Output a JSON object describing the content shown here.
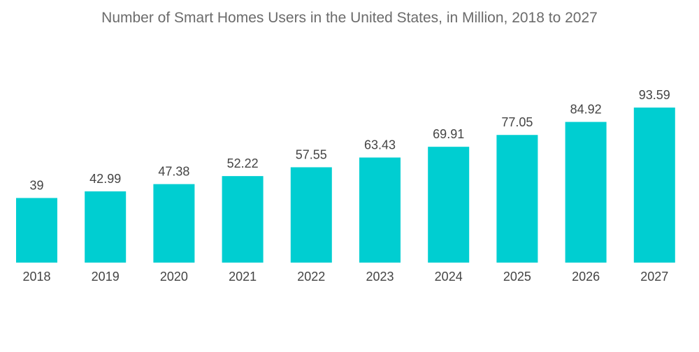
{
  "chart_data": {
    "type": "bar",
    "title": "Number of Smart Homes Users in the United States, in Million, 2018 to 2027",
    "categories": [
      "2018",
      "2019",
      "2020",
      "2021",
      "2022",
      "2023",
      "2024",
      "2025",
      "2026",
      "2027"
    ],
    "values": [
      39,
      42.99,
      47.38,
      52.22,
      57.55,
      63.43,
      69.91,
      77.05,
      84.92,
      93.59
    ],
    "value_labels": [
      "39",
      "42.99",
      "47.38",
      "52.22",
      "57.55",
      "63.43",
      "69.91",
      "77.05",
      "84.92",
      "93.59"
    ],
    "xlabel": "",
    "ylabel": "",
    "ylim": [
      0,
      93.59
    ],
    "grid": false,
    "legend": "none",
    "bar_color": "#00CED1"
  }
}
